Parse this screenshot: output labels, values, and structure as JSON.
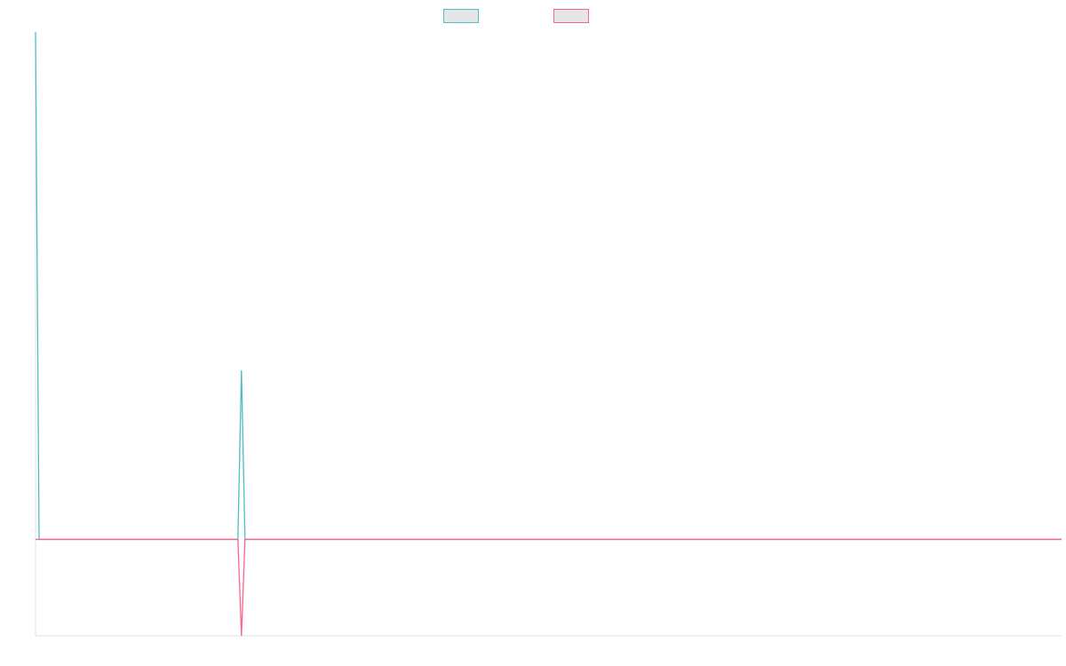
{
  "chart_data": {
    "type": "line",
    "x": [
      0,
      1,
      57,
      58,
      59,
      289
    ],
    "series": [
      {
        "color": "#4bc0c0",
        "values": [
          3,
          0,
          0,
          1,
          0,
          0
        ]
      },
      {
        "color": "#ff6384",
        "values": [
          0,
          0,
          0,
          -0.57,
          0,
          0
        ]
      }
    ],
    "xlim": [
      0,
      289
    ],
    "ylim": [
      -0.57,
      3
    ],
    "legend": "top"
  }
}
